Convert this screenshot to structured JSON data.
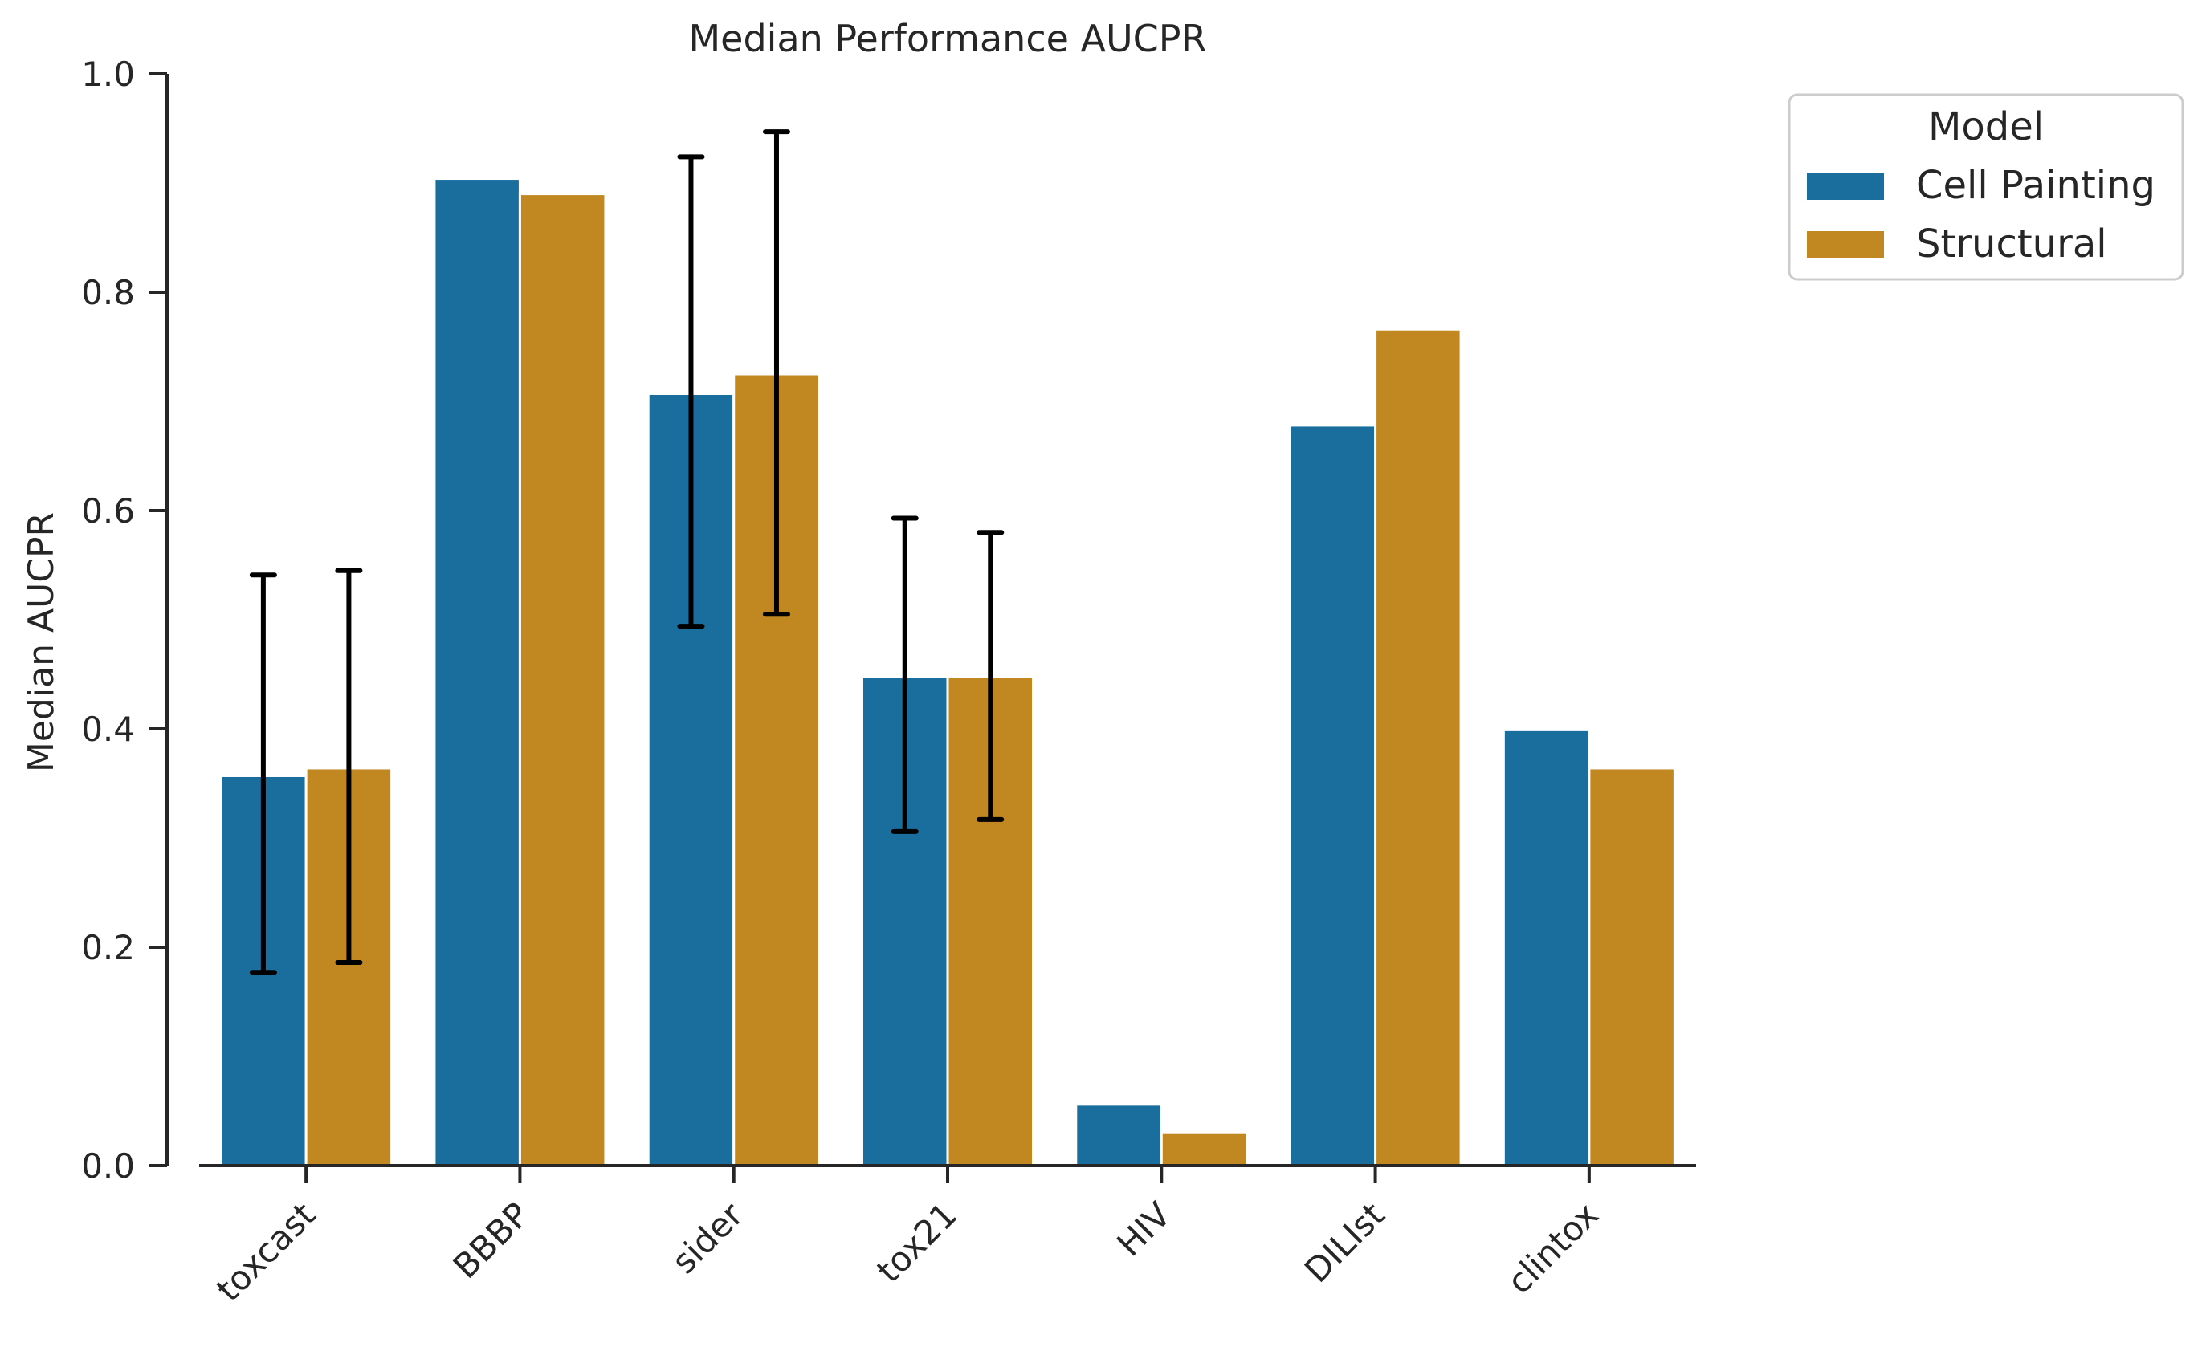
{
  "chart_data": {
    "type": "bar",
    "title": "Median Performance AUCPR",
    "xlabel": "",
    "ylabel": "Median AUCPR",
    "ylim": [
      0,
      1.0
    ],
    "yticks": [
      "0.0",
      "0.2",
      "0.4",
      "0.6",
      "0.8",
      "1.0"
    ],
    "categories": [
      "toxcast",
      "BBBP",
      "sider",
      "tox21",
      "HIV",
      "DILIst",
      "clintox"
    ],
    "series": [
      {
        "name": "Cell Painting",
        "color": "#1a6e9e",
        "values": [
          0.357,
          0.904,
          0.707,
          0.448,
          0.056,
          0.678,
          0.399
        ],
        "error_low": [
          0.177,
          null,
          0.494,
          0.306,
          null,
          null,
          null
        ],
        "error_high": [
          0.541,
          null,
          0.924,
          0.593,
          null,
          null,
          null
        ]
      },
      {
        "name": "Structural",
        "color": "#c18720",
        "values": [
          0.364,
          0.89,
          0.725,
          0.448,
          0.03,
          0.766,
          0.364
        ],
        "error_low": [
          0.186,
          null,
          0.505,
          0.317,
          null,
          null,
          null
        ],
        "error_high": [
          0.545,
          null,
          0.947,
          0.58,
          null,
          null,
          null
        ]
      }
    ],
    "grid": false,
    "legend": {
      "title": "Model",
      "placement": "outside-top-right"
    }
  }
}
